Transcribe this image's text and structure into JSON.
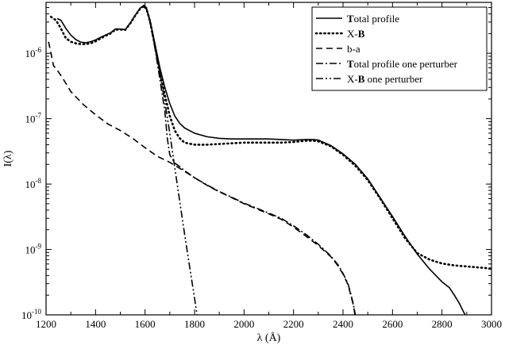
{
  "chart_data": {
    "type": "line",
    "title": "",
    "xlabel": "λ (Å)",
    "ylabel": "I(λ)",
    "xlim": [
      1200,
      3000
    ],
    "ylim": [
      1e-10,
      6e-06
    ],
    "yscale": "log",
    "grid": false,
    "legend_position": "top-right",
    "x_ticks": [
      1200,
      1400,
      1600,
      1800,
      2000,
      2200,
      2400,
      2600,
      2800,
      3000
    ],
    "x_tick_labels": [
      "1200",
      "1400",
      "1600",
      "1800",
      "2000",
      "2200",
      "2400",
      "2600",
      "2800",
      "3000"
    ],
    "y_ticks": [
      1e-10,
      1e-09,
      1e-08,
      1e-07,
      1e-06
    ],
    "y_tick_labels": [
      {
        "base": "10",
        "exp": "-10"
      },
      {
        "base": "10",
        "exp": "-9"
      },
      {
        "base": "10",
        "exp": "-8"
      },
      {
        "base": "10",
        "exp": "-7"
      },
      {
        "base": "10",
        "exp": "-6"
      }
    ],
    "series": [
      {
        "name": "Total profile",
        "legend_parts": [
          {
            "text": "T",
            "bold": true
          },
          {
            "text": "otal profile",
            "bold": false
          }
        ],
        "style": "solid",
        "color": "#000000",
        "points": [
          [
            1245,
            3.4e-06
          ],
          [
            1260,
            3.2e-06
          ],
          [
            1280,
            2.4e-06
          ],
          [
            1300,
            1.9e-06
          ],
          [
            1320,
            1.62e-06
          ],
          [
            1340,
            1.48e-06
          ],
          [
            1360,
            1.45e-06
          ],
          [
            1380,
            1.5e-06
          ],
          [
            1400,
            1.6e-06
          ],
          [
            1420,
            1.75e-06
          ],
          [
            1440,
            1.9e-06
          ],
          [
            1460,
            2.05e-06
          ],
          [
            1480,
            2.35e-06
          ],
          [
            1500,
            2.35e-06
          ],
          [
            1520,
            2.3e-06
          ],
          [
            1540,
            2.9e-06
          ],
          [
            1560,
            3.8e-06
          ],
          [
            1580,
            4.9e-06
          ],
          [
            1595,
            5.4e-06
          ],
          [
            1605,
            5e-06
          ],
          [
            1620,
            3.2e-06
          ],
          [
            1640,
            1.4e-06
          ],
          [
            1660,
            6e-07
          ],
          [
            1680,
            3e-07
          ],
          [
            1700,
            1.7e-07
          ],
          [
            1720,
            1.1e-07
          ],
          [
            1740,
            8.5e-08
          ],
          [
            1760,
            7.2e-08
          ],
          [
            1800,
            6e-08
          ],
          [
            1850,
            5.3e-08
          ],
          [
            1900,
            5e-08
          ],
          [
            1950,
            4.9e-08
          ],
          [
            2000,
            4.9e-08
          ],
          [
            2050,
            4.9e-08
          ],
          [
            2100,
            4.9e-08
          ],
          [
            2150,
            4.8e-08
          ],
          [
            2200,
            4.7e-08
          ],
          [
            2250,
            4.8e-08
          ],
          [
            2280,
            4.8e-08
          ],
          [
            2300,
            4.7e-08
          ],
          [
            2350,
            3.9e-08
          ],
          [
            2400,
            2.9e-08
          ],
          [
            2450,
            2e-08
          ],
          [
            2500,
            1.2e-08
          ],
          [
            2550,
            6.2e-09
          ],
          [
            2600,
            3.2e-09
          ],
          [
            2650,
            1.6e-09
          ],
          [
            2700,
            8.5e-10
          ],
          [
            2750,
            5e-10
          ],
          [
            2800,
            3.2e-10
          ],
          [
            2830,
            2.6e-10
          ],
          [
            2850,
            2e-10
          ],
          [
            2870,
            1.5e-10
          ],
          [
            2885,
            1.15e-10
          ],
          [
            2900,
            9e-11
          ]
        ]
      },
      {
        "name": "X-B",
        "legend_parts": [
          {
            "text": "X-",
            "bold": false
          },
          {
            "text": "B",
            "bold": true
          }
        ],
        "style": "dotted",
        "color": "#000000",
        "points": [
          [
            1220,
            3.6e-06
          ],
          [
            1240,
            3.2e-06
          ],
          [
            1260,
            2.4e-06
          ],
          [
            1280,
            1.7e-06
          ],
          [
            1300,
            1.5e-06
          ],
          [
            1320,
            1.42e-06
          ],
          [
            1340,
            1.38e-06
          ],
          [
            1360,
            1.38e-06
          ],
          [
            1380,
            1.42e-06
          ],
          [
            1400,
            1.52e-06
          ],
          [
            1420,
            1.68e-06
          ],
          [
            1440,
            1.85e-06
          ],
          [
            1460,
            2e-06
          ],
          [
            1480,
            2.3e-06
          ],
          [
            1500,
            2.3e-06
          ],
          [
            1520,
            2.28e-06
          ],
          [
            1540,
            2.85e-06
          ],
          [
            1560,
            3.75e-06
          ],
          [
            1580,
            4.8e-06
          ],
          [
            1595,
            5.3e-06
          ],
          [
            1605,
            4.9e-06
          ],
          [
            1620,
            3.1e-06
          ],
          [
            1640,
            1.3e-06
          ],
          [
            1660,
            5.2e-07
          ],
          [
            1680,
            2.3e-07
          ],
          [
            1700,
            1.1e-07
          ],
          [
            1720,
            6.6e-08
          ],
          [
            1740,
            5e-08
          ],
          [
            1760,
            4.3e-08
          ],
          [
            1800,
            4e-08
          ],
          [
            1850,
            4e-08
          ],
          [
            1900,
            4.1e-08
          ],
          [
            1950,
            4.2e-08
          ],
          [
            2000,
            4.3e-08
          ],
          [
            2050,
            4.3e-08
          ],
          [
            2100,
            4.3e-08
          ],
          [
            2150,
            4.3e-08
          ],
          [
            2200,
            4.4e-08
          ],
          [
            2250,
            4.6e-08
          ],
          [
            2280,
            4.6e-08
          ],
          [
            2300,
            4.5e-08
          ],
          [
            2350,
            3.8e-08
          ],
          [
            2400,
            2.8e-08
          ],
          [
            2450,
            1.9e-08
          ],
          [
            2500,
            1.15e-08
          ],
          [
            2550,
            6e-09
          ],
          [
            2600,
            3e-09
          ],
          [
            2650,
            1.5e-09
          ],
          [
            2700,
            8.8e-10
          ],
          [
            2750,
            7e-10
          ],
          [
            2800,
            6.1e-10
          ],
          [
            2850,
            5.7e-10
          ],
          [
            2900,
            5.5e-10
          ],
          [
            2950,
            5.3e-10
          ],
          [
            3000,
            5.1e-10
          ]
        ]
      },
      {
        "name": "b-a",
        "legend_parts": [
          {
            "text": "b-a",
            "bold": false
          }
        ],
        "style": "dashed",
        "color": "#000000",
        "points": [
          [
            1210,
            1.5e-06
          ],
          [
            1220,
            1e-06
          ],
          [
            1230,
            6.5e-07
          ],
          [
            1250,
            5.2e-07
          ],
          [
            1270,
            4e-07
          ],
          [
            1300,
            2.6e-07
          ],
          [
            1350,
            1.65e-07
          ],
          [
            1400,
            1.15e-07
          ],
          [
            1450,
            8.3e-08
          ],
          [
            1500,
            6.6e-08
          ],
          [
            1550,
            5e-08
          ],
          [
            1600,
            3.6e-08
          ],
          [
            1650,
            2.65e-08
          ],
          [
            1700,
            2.15e-08
          ],
          [
            1750,
            1.65e-08
          ],
          [
            1800,
            1.25e-08
          ],
          [
            1850,
            9.6e-09
          ],
          [
            1900,
            7.6e-09
          ],
          [
            1950,
            6.2e-09
          ],
          [
            2000,
            5e-09
          ],
          [
            2050,
            4.2e-09
          ],
          [
            2100,
            3.5e-09
          ],
          [
            2150,
            2.9e-09
          ],
          [
            2200,
            2.2e-09
          ],
          [
            2250,
            1.6e-09
          ],
          [
            2300,
            1.15e-09
          ],
          [
            2350,
            7.8e-10
          ],
          [
            2380,
            5.6e-10
          ],
          [
            2400,
            4.2e-10
          ],
          [
            2420,
            2.9e-10
          ],
          [
            2430,
            2.1e-10
          ],
          [
            2440,
            1.5e-10
          ],
          [
            2445,
            1.2e-10
          ],
          [
            2450,
            9e-11
          ]
        ]
      },
      {
        "name": "Total profile one perturber",
        "legend_parts": [
          {
            "text": "T",
            "bold": true
          },
          {
            "text": "otal profile one perturber",
            "bold": false
          }
        ],
        "style": "dashdot",
        "color": "#000000",
        "points": [
          [
            1590,
            5.2e-06
          ],
          [
            1605,
            4.8e-06
          ],
          [
            1620,
            3e-06
          ],
          [
            1640,
            1.2e-06
          ],
          [
            1660,
            4e-07
          ],
          [
            1680,
            1.3e-07
          ],
          [
            1690,
            5e-08
          ],
          [
            1700,
            2.8e-08
          ],
          [
            1720,
            2.1e-08
          ],
          [
            1740,
            1.85e-08
          ],
          [
            1760,
            1.6e-08
          ],
          [
            1800,
            1.25e-08
          ],
          [
            1850,
            9.7e-09
          ],
          [
            1900,
            7.7e-09
          ],
          [
            1950,
            6.3e-09
          ],
          [
            2000,
            5.1e-09
          ],
          [
            2050,
            4.3e-09
          ],
          [
            2100,
            3.6e-09
          ],
          [
            2150,
            3e-09
          ],
          [
            2200,
            2.3e-09
          ],
          [
            2250,
            1.7e-09
          ],
          [
            2300,
            1.2e-09
          ],
          [
            2350,
            8e-10
          ],
          [
            2380,
            5.8e-10
          ],
          [
            2400,
            4.3e-10
          ],
          [
            2420,
            3e-10
          ],
          [
            2430,
            2.2e-10
          ],
          [
            2440,
            1.55e-10
          ],
          [
            2445,
            1.25e-10
          ],
          [
            2452,
            9e-11
          ]
        ]
      },
      {
        "name": "X-B one perturber",
        "legend_parts": [
          {
            "text": "X-",
            "bold": false
          },
          {
            "text": "B",
            "bold": true
          },
          {
            "text": " one perturber",
            "bold": false
          }
        ],
        "style": "dashdotdot",
        "color": "#000000",
        "points": [
          [
            1590,
            5.2e-06
          ],
          [
            1605,
            4.8e-06
          ],
          [
            1620,
            3e-06
          ],
          [
            1640,
            1.3e-06
          ],
          [
            1660,
            5e-07
          ],
          [
            1680,
            1.8e-07
          ],
          [
            1700,
            6e-08
          ],
          [
            1720,
            1.8e-08
          ],
          [
            1740,
            5.5e-09
          ],
          [
            1760,
            1.7e-09
          ],
          [
            1780,
            5.5e-10
          ],
          [
            1800,
            1.8e-10
          ],
          [
            1812,
            9e-11
          ]
        ]
      }
    ]
  }
}
